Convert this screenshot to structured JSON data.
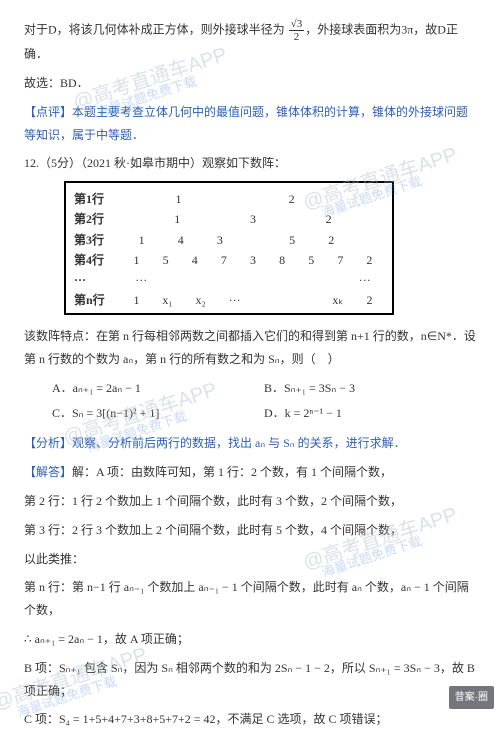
{
  "p1_a": "对于D，将该几何体补成正方体，则外接球半径为 ",
  "p1_b": "，外接球表面积为3π，故D正确．",
  "frac1_num": "√3",
  "frac1_den": "2",
  "p2": "故选：BD．",
  "p3": "【点评】本题主要考查立体几何中的最值问题，锥体体积的计算，锥体的外接球问题等知识，属于中等题．",
  "p4": "12.（5分）（2021 秋·如皋市期中）观察如下数阵：",
  "tbl": {
    "rows": [
      {
        "label": "第1行",
        "cells": [
          "",
          "1",
          "",
          "",
          "2",
          "",
          ""
        ]
      },
      {
        "label": "第2行",
        "cells": [
          "",
          "1",
          "",
          "3",
          "",
          "2",
          ""
        ]
      },
      {
        "label": "第3行",
        "cells": [
          "1",
          "4",
          "3",
          "",
          "5",
          "2",
          ""
        ]
      },
      {
        "label": "第4行",
        "cells": [
          "1",
          "5",
          "4",
          "7",
          "3",
          "8",
          "5",
          "7",
          "2"
        ]
      },
      {
        "label": "···",
        "cells": [
          "···",
          "",
          "",
          "",
          "",
          "",
          "",
          "",
          "···"
        ]
      },
      {
        "label": "第n行",
        "cells": [
          "1",
          "x₁",
          "x₂",
          "···",
          "",
          "",
          "",
          "xₖ",
          "2"
        ]
      }
    ]
  },
  "p5": "该数阵特点：在第 n 行每相邻两数之间都插入它们的和得到第 n+1 行的数，n∈N*．设第 n 行数的个数为 aₙ，第 n 行的所有数之和为 Sₙ，则（　）",
  "opts": {
    "A": "A．aₙ₊₁ = 2aₙ − 1",
    "B": "B．Sₙ₊₁ = 3Sₙ − 3",
    "C": "C．Sₙ = 3[(n−1)² + 1]",
    "D": "D．k = 2ⁿ⁻¹ − 1"
  },
  "p6": "【分析】观察、分析前后两行的数据，找出 aₙ 与 Sₙ 的关系，进行求解．",
  "p7": "【解答】解：A 项：由数阵可知，第 1 行：2 个数，有 1 个间隔个数，",
  "p8": "第 2 行：1 行 2 个数加上 1 个间隔个数，此时有 3 个数，2 个间隔个数，",
  "p9": "第 3 行：2 行 3 个数加上 2 个间隔个数，此时有 5 个数，4 个间隔个数，",
  "p10": "以此类推：",
  "p11": "第 n 行：第 n−1 行 aₙ₋₁ 个数加上 aₙ₋₁ − 1 个间隔个数，此时有 aₙ 个数，aₙ − 1 个间隔个数，",
  "p12": "∴ aₙ₊₁ = 2aₙ − 1，故 A 项正确；",
  "p13": "B 项：Sₙ₊₁ 包含 Sₙ，因为 Sₙ 相邻两个数的和为 2Sₙ − 1 − 2，所以 Sₙ₊₁ = 3Sₙ − 3，故 B 项正确；",
  "p14": "C 项：S₄ = 1+5+4+7+3+8+5+7+2 = 42，不满足 C 选项，故 C 项错误；",
  "corner": "昔案·圈",
  "wm": {
    "a": "@高考直通车APP",
    "b": "海量试题免费下载"
  }
}
